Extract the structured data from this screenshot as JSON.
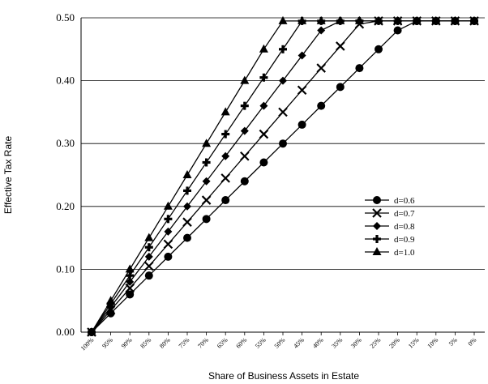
{
  "chart_data": {
    "type": "line",
    "title": "",
    "xlabel": "Share of Business Assets in Estate",
    "ylabel": "Effective Tax Rate",
    "ylim": [
      0,
      0.5
    ],
    "y_ticks": [
      "0.00",
      "0.10",
      "0.20",
      "0.30",
      "0.40",
      "0.50"
    ],
    "y_tick_values": [
      0,
      0.1,
      0.2,
      0.3,
      0.4,
      0.5
    ],
    "grid": "horizontal",
    "legend_position": "right",
    "x": [
      "100%",
      "95%",
      "90%",
      "85%",
      "80%",
      "75%",
      "70%",
      "65%",
      "60%",
      "55%",
      "50%",
      "45%",
      "40%",
      "35%",
      "30%",
      "25%",
      "20%",
      "15%",
      "10%",
      "5%",
      "0%"
    ],
    "series": [
      {
        "name": "d=0.6",
        "marker": "circle",
        "values": [
          0,
          0.03,
          0.06,
          0.09,
          0.12,
          0.15,
          0.18,
          0.21,
          0.24,
          0.27,
          0.3,
          0.33,
          0.36,
          0.39,
          0.42,
          0.45,
          0.48,
          0.495,
          0.495,
          0.495,
          0.495
        ]
      },
      {
        "name": "d=0.7",
        "marker": "x",
        "values": [
          0,
          0.035,
          0.07,
          0.105,
          0.14,
          0.175,
          0.21,
          0.245,
          0.28,
          0.315,
          0.35,
          0.385,
          0.42,
          0.455,
          0.49,
          0.495,
          0.495,
          0.495,
          0.495,
          0.495,
          0.495
        ]
      },
      {
        "name": "d=0.8",
        "marker": "diamond",
        "values": [
          0,
          0.04,
          0.08,
          0.12,
          0.16,
          0.2,
          0.24,
          0.28,
          0.32,
          0.36,
          0.4,
          0.44,
          0.48,
          0.495,
          0.495,
          0.495,
          0.495,
          0.495,
          0.495,
          0.495,
          0.495
        ]
      },
      {
        "name": "d=0.9",
        "marker": "plus",
        "values": [
          0,
          0.045,
          0.09,
          0.135,
          0.18,
          0.225,
          0.27,
          0.315,
          0.36,
          0.405,
          0.45,
          0.495,
          0.495,
          0.495,
          0.495,
          0.495,
          0.495,
          0.495,
          0.495,
          0.495,
          0.495
        ]
      },
      {
        "name": "d=1.0",
        "marker": "triangle",
        "values": [
          0,
          0.05,
          0.1,
          0.15,
          0.2,
          0.25,
          0.3,
          0.35,
          0.4,
          0.45,
          0.495,
          0.495,
          0.495,
          0.495,
          0.495,
          0.495,
          0.495,
          0.495,
          0.495,
          0.495,
          0.495
        ]
      }
    ]
  }
}
